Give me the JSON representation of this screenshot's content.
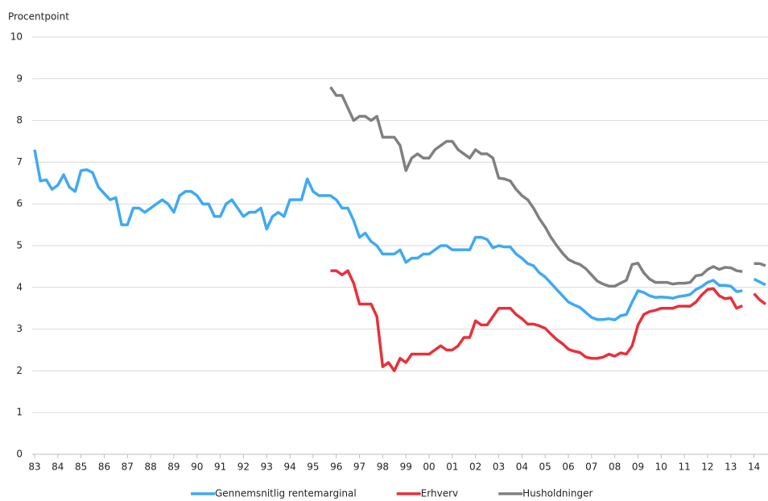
{
  "chart_data": {
    "type": "line",
    "y_label": "Procentpoint",
    "categories": [
      "83",
      null,
      null,
      null,
      "84",
      null,
      null,
      null,
      "85",
      null,
      null,
      null,
      "86",
      null,
      null,
      null,
      "87",
      null,
      null,
      null,
      "88",
      null,
      null,
      null,
      "89",
      null,
      null,
      null,
      "90",
      null,
      null,
      null,
      "91",
      null,
      null,
      null,
      "92",
      null,
      null,
      null,
      "93",
      null,
      null,
      null,
      "94",
      null,
      null,
      null,
      "95",
      null,
      null,
      null,
      "96",
      null,
      null,
      null,
      "97",
      null,
      null,
      null,
      "98",
      null,
      null,
      null,
      "99",
      null,
      null,
      null,
      "00",
      null,
      null,
      null,
      "01",
      null,
      null,
      null,
      "02",
      null,
      null,
      null,
      "03",
      null,
      null,
      null,
      "04",
      null,
      null,
      null,
      "05",
      null,
      null,
      null,
      "06",
      null,
      null,
      null,
      "07",
      null,
      null,
      null,
      "08",
      null,
      null,
      null,
      "09",
      null,
      null,
      null,
      "10",
      null,
      null,
      null,
      "11",
      null,
      null,
      null,
      "12",
      null,
      null,
      null,
      "13",
      null,
      null,
      null,
      "14",
      null,
      null
    ],
    "series": [
      {
        "name": "Gennemsnitlig rentemarginal",
        "color": "#3fa9f5",
        "values": [
          7.3,
          6.55,
          6.58,
          6.35,
          6.45,
          6.7,
          6.4,
          6.3,
          6.8,
          6.82,
          6.75,
          6.4,
          6.25,
          6.1,
          6.15,
          5.5,
          5.5,
          5.9,
          5.9,
          5.8,
          5.9,
          6.0,
          6.1,
          6.0,
          5.8,
          6.2,
          6.3,
          6.3,
          6.2,
          6.0,
          6.0,
          5.7,
          5.7,
          6.0,
          6.1,
          5.9,
          5.7,
          5.8,
          5.8,
          5.9,
          5.4,
          5.7,
          5.8,
          5.7,
          6.1,
          6.1,
          6.1,
          6.6,
          6.3,
          6.2,
          6.2,
          6.2,
          6.1,
          5.9,
          5.9,
          5.6,
          5.2,
          5.3,
          5.1,
          5.0,
          4.8,
          4.8,
          4.8,
          4.9,
          4.6,
          4.7,
          4.7,
          4.8,
          4.8,
          4.9,
          5.0,
          5.0,
          4.9,
          4.9,
          4.9,
          4.9,
          5.2,
          5.2,
          5.15,
          4.95,
          5.0,
          4.97,
          4.97,
          4.8,
          4.7,
          4.57,
          4.52,
          4.35,
          4.25,
          4.1,
          3.95,
          3.8,
          3.65,
          3.58,
          3.52,
          3.4,
          3.28,
          3.23,
          3.23,
          3.25,
          3.22,
          3.32,
          3.35,
          3.65,
          3.92,
          3.88,
          3.8,
          3.76,
          3.77,
          3.76,
          3.74,
          3.78,
          3.8,
          3.83,
          3.95,
          4.02,
          4.12,
          4.17,
          4.05,
          4.05,
          4.03,
          3.9,
          3.92,
          null,
          4.2,
          4.13,
          4.06
        ]
      },
      {
        "name": "Erhverv",
        "color": "#e8303a",
        "values": [
          null,
          null,
          null,
          null,
          null,
          null,
          null,
          null,
          null,
          null,
          null,
          null,
          null,
          null,
          null,
          null,
          null,
          null,
          null,
          null,
          null,
          null,
          null,
          null,
          null,
          null,
          null,
          null,
          null,
          null,
          null,
          null,
          null,
          null,
          null,
          null,
          null,
          null,
          null,
          null,
          null,
          null,
          null,
          null,
          null,
          null,
          null,
          null,
          null,
          null,
          null,
          4.4,
          4.4,
          4.3,
          4.4,
          4.1,
          3.6,
          3.6,
          3.6,
          3.3,
          2.1,
          2.2,
          2.0,
          2.3,
          2.2,
          2.4,
          2.4,
          2.4,
          2.4,
          2.5,
          2.6,
          2.5,
          2.5,
          2.6,
          2.8,
          2.8,
          3.2,
          3.1,
          3.1,
          3.3,
          3.5,
          3.5,
          3.5,
          3.35,
          3.25,
          3.12,
          3.12,
          3.08,
          3.02,
          2.88,
          2.75,
          2.65,
          2.52,
          2.47,
          2.44,
          2.33,
          2.3,
          2.3,
          2.33,
          2.4,
          2.35,
          2.43,
          2.4,
          2.6,
          3.1,
          3.35,
          3.42,
          3.45,
          3.5,
          3.5,
          3.5,
          3.55,
          3.55,
          3.55,
          3.65,
          3.82,
          3.95,
          3.97,
          3.8,
          3.73,
          3.75,
          3.5,
          3.56,
          null,
          3.85,
          3.7,
          3.6
        ]
      },
      {
        "name": "Husholdninger",
        "color": "#808080",
        "values": [
          null,
          null,
          null,
          null,
          null,
          null,
          null,
          null,
          null,
          null,
          null,
          null,
          null,
          null,
          null,
          null,
          null,
          null,
          null,
          null,
          null,
          null,
          null,
          null,
          null,
          null,
          null,
          null,
          null,
          null,
          null,
          null,
          null,
          null,
          null,
          null,
          null,
          null,
          null,
          null,
          null,
          null,
          null,
          null,
          null,
          null,
          null,
          null,
          null,
          null,
          null,
          8.8,
          8.6,
          8.6,
          8.3,
          8.0,
          8.1,
          8.1,
          8.0,
          8.1,
          7.6,
          7.6,
          7.6,
          7.4,
          6.8,
          7.1,
          7.2,
          7.1,
          7.1,
          7.3,
          7.4,
          7.5,
          7.5,
          7.3,
          7.2,
          7.1,
          7.3,
          7.2,
          7.2,
          7.1,
          6.62,
          6.6,
          6.55,
          6.35,
          6.2,
          6.1,
          5.9,
          5.65,
          5.45,
          5.2,
          5.0,
          4.82,
          4.67,
          4.6,
          4.55,
          4.45,
          4.3,
          4.15,
          4.08,
          4.03,
          4.03,
          4.1,
          4.17,
          4.55,
          4.58,
          4.35,
          4.2,
          4.12,
          4.12,
          4.12,
          4.08,
          4.1,
          4.1,
          4.12,
          4.28,
          4.3,
          4.43,
          4.5,
          4.43,
          4.48,
          4.47,
          4.4,
          4.38,
          null,
          4.57,
          4.57,
          4.52
        ]
      }
    ],
    "ylim": [
      0,
      10
    ],
    "yticks": [
      0,
      1,
      2,
      3,
      4,
      5,
      6,
      7,
      8,
      9,
      10
    ],
    "grid": true,
    "legend": "bottom"
  }
}
